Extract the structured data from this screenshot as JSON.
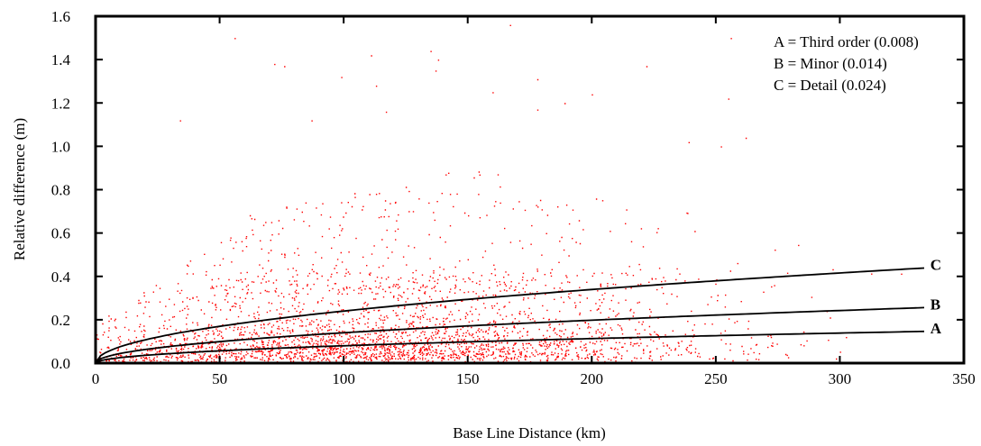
{
  "chart_data": {
    "type": "scatter",
    "xlabel": "Base Line Distance (km)",
    "ylabel": "Relative difference (m)",
    "xlim": [
      0,
      350
    ],
    "ylim": [
      0,
      1.6
    ],
    "xticks": [
      0,
      50,
      100,
      150,
      200,
      250,
      300,
      350
    ],
    "yticks": [
      0.0,
      0.2,
      0.4,
      0.6,
      0.8,
      1.0,
      1.2,
      1.4,
      1.6
    ],
    "ytick_labels": [
      "0.0",
      "0.2",
      "0.4",
      "0.6",
      "0.8",
      "1.0",
      "1.2",
      "1.4",
      "1.6"
    ],
    "grid": false,
    "legend_position": "top-right",
    "legend": [
      "A = Third order (0.008)",
      "B = Minor (0.014)",
      "C = Detail (0.024)"
    ],
    "scatter_color": "#ff0000",
    "curve_color": "#000000",
    "scatter_points": [
      [
        56,
        1.5
      ],
      [
        167,
        1.56
      ],
      [
        256,
        1.5
      ],
      [
        135,
        1.44
      ],
      [
        72,
        1.38
      ],
      [
        111,
        1.42
      ],
      [
        138,
        1.4
      ],
      [
        178,
        1.31
      ],
      [
        222,
        1.37
      ],
      [
        99,
        1.32
      ],
      [
        189,
        1.2
      ],
      [
        76,
        1.37
      ],
      [
        255,
        1.22
      ],
      [
        34,
        1.12
      ],
      [
        160,
        1.25
      ],
      [
        113,
        1.28
      ],
      [
        200,
        1.24
      ],
      [
        137,
        1.35
      ],
      [
        117,
        1.16
      ],
      [
        87,
        1.12
      ],
      [
        178,
        1.17
      ],
      [
        262,
        1.04
      ],
      [
        239,
        1.02
      ],
      [
        252,
        1.0
      ]
    ],
    "point_cloud": {
      "x_range": [
        0,
        335
      ],
      "bulk_peak_x": 110,
      "approx_points": 14000
    },
    "curves": [
      {
        "label": "A",
        "coefficient": 0.008,
        "x_range": [
          0,
          335
        ],
        "y_at_335": 0.146
      },
      {
        "label": "B",
        "coefficient": 0.014,
        "x_range": [
          0,
          335
        ],
        "y_at_335": 0.256
      },
      {
        "label": "C",
        "coefficient": 0.024,
        "x_range": [
          0,
          335
        ],
        "y_at_335": 0.439
      }
    ]
  }
}
